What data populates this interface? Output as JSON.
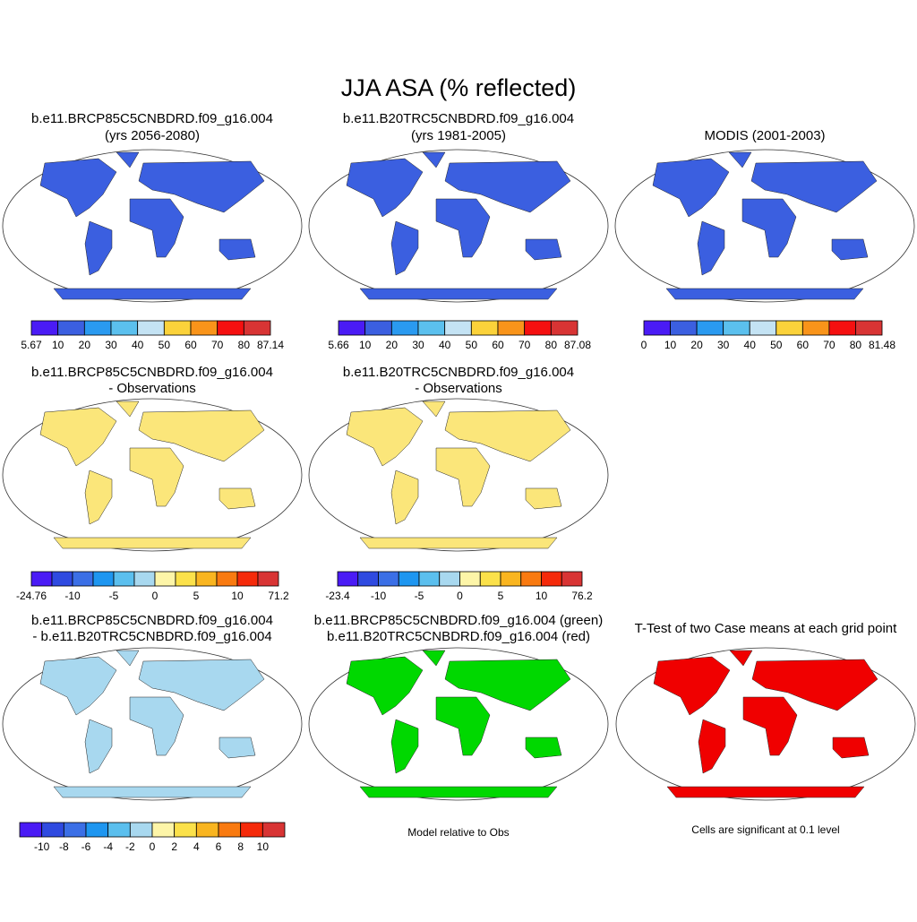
{
  "title": "JJA ASA (% reflected)",
  "panels": [
    {
      "title": [
        "b.e11.BRCP85C5CNBDRD.f09_g16.004",
        "(yrs 2056-2080)"
      ],
      "colorbar": {
        "colors": [
          "#4a1bf5",
          "#3b5fe0",
          "#2a9af0",
          "#5bc0ee",
          "#c4e3f4",
          "#fbd23a",
          "#f9941a",
          "#f51010",
          "#d83434"
        ],
        "labels": [
          5.67,
          10,
          20,
          30,
          40,
          50,
          60,
          70,
          80,
          87.14
        ]
      }
    },
    {
      "title": [
        "b.e11.B20TRC5CNBDRD.f09_g16.004",
        "(yrs 1981-2005)"
      ],
      "colorbar": {
        "colors": [
          "#4a1bf5",
          "#3b5fe0",
          "#2a9af0",
          "#5bc0ee",
          "#c4e3f4",
          "#fbd23a",
          "#f9941a",
          "#f51010",
          "#d83434"
        ],
        "labels": [
          5.66,
          10,
          20,
          30,
          40,
          50,
          60,
          70,
          80,
          87.08
        ]
      }
    },
    {
      "title": [
        "MODIS (2001-2003)"
      ],
      "colorbar": {
        "colors": [
          "#4a1bf5",
          "#3b5fe0",
          "#2a9af0",
          "#5bc0ee",
          "#c4e3f4",
          "#fbd23a",
          "#f9941a",
          "#f51010",
          "#d83434"
        ],
        "labels": [
          0,
          10,
          20,
          30,
          40,
          50,
          60,
          70,
          80,
          81.48
        ]
      }
    },
    {
      "title": [
        "b.e11.BRCP85C5CNBDRD.f09_g16.004",
        "- Observations"
      ],
      "colorbar": {
        "colors": [
          "#4a1bf5",
          "#2f4ae0",
          "#3b6fe6",
          "#1e96f0",
          "#5bbfee",
          "#a8d8ef",
          "#fdf5a8",
          "#fbe14a",
          "#f9b520",
          "#f97a10",
          "#f52a0a",
          "#d83434"
        ],
        "labels": [
          -24.76,
          -10,
          -5,
          0,
          5,
          10,
          71.2
        ]
      }
    },
    {
      "title": [
        "b.e11.B20TRC5CNBDRD.f09_g16.004",
        "- Observations"
      ],
      "colorbar": {
        "colors": [
          "#4a1bf5",
          "#2f4ae0",
          "#3b6fe6",
          "#1e96f0",
          "#5bbfee",
          "#a8d8ef",
          "#fdf5a8",
          "#fbe14a",
          "#f9b520",
          "#f97a10",
          "#f52a0a",
          "#d83434"
        ],
        "labels": [
          -23.4,
          -10,
          -5,
          0,
          5,
          10,
          76.2
        ]
      }
    },
    {
      "title": [
        "b.e11.BRCP85C5CNBDRD.f09_g16.004",
        "- b.e11.B20TRC5CNBDRD.f09_g16.004"
      ],
      "colorbar": {
        "colors": [
          "#4a1bf5",
          "#2f4ae0",
          "#3b6fe6",
          "#1e96f0",
          "#5bbfee",
          "#a8d8ef",
          "#fdf5a8",
          "#fbe14a",
          "#f9b520",
          "#f97a10",
          "#f52a0a",
          "#d83434"
        ],
        "labels": [
          -10,
          -8,
          -6,
          -4,
          -2,
          0,
          2,
          4,
          6,
          8,
          10
        ]
      }
    },
    {
      "title": [
        "b.e11.BRCP85C5CNBDRD.f09_g16.004 (green)",
        "b.e11.B20TRC5CNBDRD.f09_g16.004 (red)"
      ],
      "note": "Model relative to Obs"
    },
    {
      "title": [
        "T-Test of two Case means at each grid point"
      ],
      "note": "Cells are significant at 0.1 level"
    }
  ]
}
